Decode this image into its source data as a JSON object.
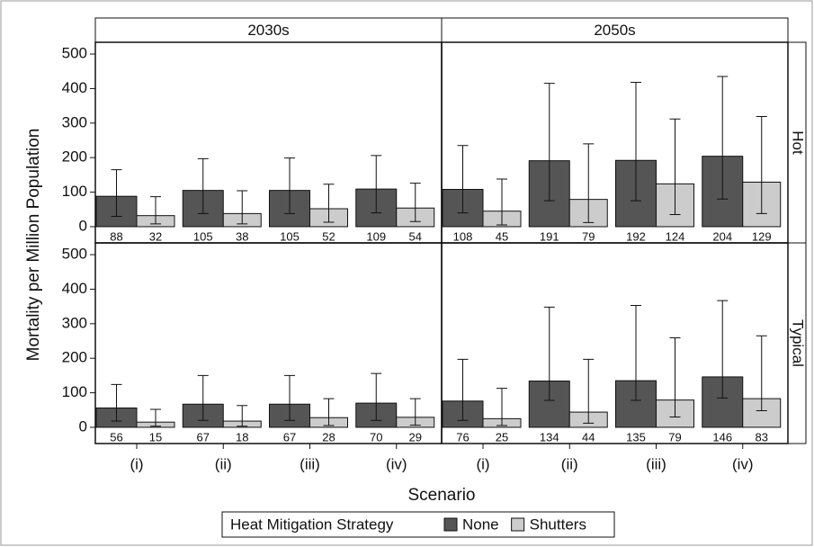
{
  "y_label": "Mortality per Million Population",
  "x_label": "Scenario",
  "legend_title": "Heat Mitigation Strategy",
  "columns": [
    "2030s",
    "2050s"
  ],
  "rows": [
    "Hot",
    "Typical"
  ],
  "chart_data": [
    {
      "type": "bar",
      "ylim": [
        -47,
        534
      ],
      "yticks": [
        0,
        100,
        200,
        300,
        400,
        500
      ],
      "series": [
        {
          "name": "None",
          "color": "#555555",
          "values": [
            88,
            105,
            105,
            109
          ],
          "lower": [
            30,
            38,
            38,
            40
          ],
          "upper": [
            165,
            197,
            199,
            206
          ]
        },
        {
          "name": "Shutters",
          "color": "#cccccc",
          "values": [
            32,
            38,
            52,
            54
          ],
          "lower": [
            8,
            8,
            13,
            15
          ],
          "upper": [
            87,
            104,
            123,
            126
          ]
        }
      ]
    },
    {
      "type": "bar",
      "ylim": [
        -47,
        534
      ],
      "series": [
        {
          "name": "None",
          "color": "#555555",
          "values": [
            108,
            191,
            192,
            204
          ],
          "lower": [
            40,
            75,
            75,
            80
          ],
          "upper": [
            235,
            415,
            418,
            435
          ]
        },
        {
          "name": "Shutters",
          "color": "#cccccc",
          "values": [
            45,
            79,
            124,
            129
          ],
          "lower": [
            5,
            12,
            35,
            38
          ],
          "upper": [
            138,
            240,
            312,
            319
          ]
        }
      ]
    },
    {
      "type": "bar",
      "ylim": [
        -47,
        534
      ],
      "yticks": [
        0,
        100,
        200,
        300,
        400,
        500
      ],
      "categories": [
        "(i)",
        "(ii)",
        "(iii)",
        "(iv)"
      ],
      "series": [
        {
          "name": "None",
          "color": "#555555",
          "values": [
            56,
            67,
            67,
            70
          ],
          "lower": [
            18,
            20,
            20,
            20
          ],
          "upper": [
            124,
            150,
            150,
            156
          ]
        },
        {
          "name": "Shutters",
          "color": "#cccccc",
          "values": [
            15,
            18,
            28,
            29
          ],
          "lower": [
            3,
            3,
            5,
            6
          ],
          "upper": [
            52,
            63,
            83,
            83
          ]
        }
      ]
    },
    {
      "type": "bar",
      "ylim": [
        -47,
        534
      ],
      "categories": [
        "(i)",
        "(ii)",
        "(iii)",
        "(iv)"
      ],
      "series": [
        {
          "name": "None",
          "color": "#555555",
          "values": [
            76,
            134,
            135,
            146
          ],
          "lower": [
            20,
            78,
            78,
            85
          ],
          "upper": [
            197,
            348,
            353,
            367
          ]
        },
        {
          "name": "Shutters",
          "color": "#cccccc",
          "values": [
            25,
            44,
            79,
            83
          ],
          "lower": [
            5,
            12,
            30,
            48
          ],
          "upper": [
            113,
            197,
            259,
            265
          ]
        }
      ]
    }
  ]
}
